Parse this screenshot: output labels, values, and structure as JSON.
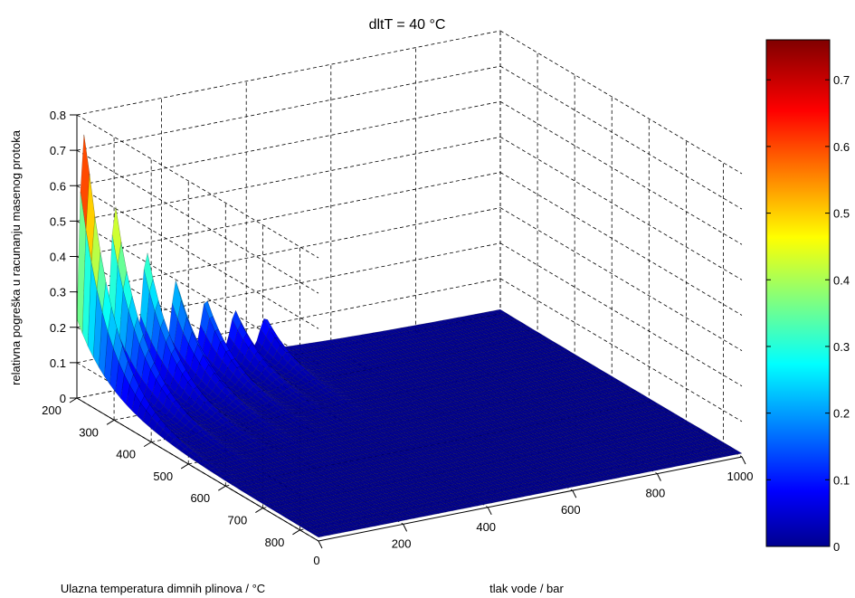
{
  "chart_data": {
    "type": "surface",
    "title": "dltT = 40 °C",
    "xlabel": "tlak vode / bar",
    "ylabel": "Ulazna temperatura dimnih plinova  / °C",
    "zlabel": "relativna pogreška u racunanju masenog protoka",
    "xlim": [
      0,
      1000
    ],
    "ylim": [
      200,
      850
    ],
    "zlim": [
      0,
      0.8
    ],
    "xticks": [
      "0",
      "200",
      "400",
      "600",
      "800",
      "1000"
    ],
    "yticks": [
      "200",
      "300",
      "400",
      "500",
      "600",
      "700",
      "800"
    ],
    "zticks": [
      "0",
      "0.1",
      "0.2",
      "0.3",
      "0.4",
      "0.5",
      "0.6",
      "0.7",
      "0.8"
    ],
    "colorbar": {
      "range": [
        0,
        0.76
      ],
      "ticks": [
        "0",
        "0.1",
        "0.2",
        "0.3",
        "0.4",
        "0.5",
        "0.6",
        "0.7"
      ],
      "colormap": "jet"
    },
    "peaks": [
      {
        "pressure_bar": 15,
        "temperature_C": 200,
        "error": 0.69
      },
      {
        "pressure_bar": 90,
        "temperature_C": 200,
        "error": 0.45
      },
      {
        "pressure_bar": 165,
        "temperature_C": 200,
        "error": 0.32
      },
      {
        "pressure_bar": 235,
        "temperature_C": 200,
        "error": 0.24
      },
      {
        "pressure_bar": 305,
        "temperature_C": 200,
        "error": 0.18
      },
      {
        "pressure_bar": 375,
        "temperature_C": 200,
        "error": 0.14
      },
      {
        "pressure_bar": 445,
        "temperature_C": 200,
        "error": 0.11
      }
    ],
    "baseline_error": 0.02,
    "grid": true
  }
}
